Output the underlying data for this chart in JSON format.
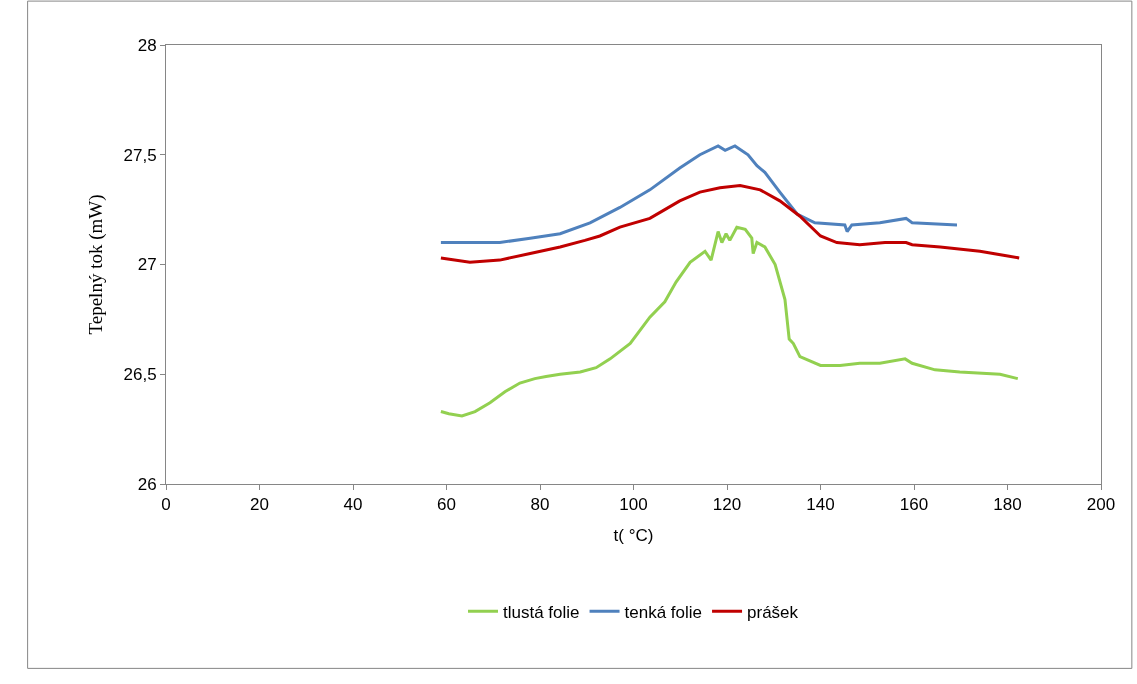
{
  "chart_data": {
    "type": "line",
    "xlabel": "t( °C)",
    "ylabel": "Tepelný tok (mW)",
    "xlim": [
      0,
      200
    ],
    "xticks": [
      0,
      20,
      40,
      60,
      80,
      100,
      120,
      140,
      160,
      180,
      200
    ],
    "ylim": [
      26,
      28
    ],
    "yticks": [
      26,
      {
        "value": 26.5,
        "label": "26,5"
      },
      27,
      {
        "value": 27.5,
        "label": "27,5"
      },
      28
    ],
    "grid": false,
    "legend": "bottom",
    "marker": "none",
    "line_style": "solid",
    "series": [
      {
        "name": "tlustá folie",
        "color": "#92d050",
        "x": [
          58.8,
          60.5,
          63.3,
          66.1,
          69.3,
          72.5,
          75.7,
          78.9,
          81.3,
          84.3,
          88.6,
          92.0,
          95.0,
          99.3,
          103.5,
          106.7,
          109.1,
          112.1,
          115.3,
          116.6,
          118.1,
          118.9,
          119.8,
          120.6,
          122.1,
          123.9,
          125.3,
          125.6,
          126.4,
          128.1,
          130.3,
          132.4,
          133.3,
          134.2,
          135.6,
          140.0,
          144.2,
          148.4,
          152.7,
          158.1,
          159.6,
          164.5,
          169.8,
          178.4,
          182.2
        ],
        "values": [
          26.33,
          26.32,
          26.31,
          26.33,
          26.37,
          26.42,
          26.46,
          26.48,
          26.49,
          26.5,
          26.51,
          26.53,
          26.57,
          26.64,
          26.76,
          26.83,
          26.92,
          27.01,
          27.06,
          27.02,
          27.15,
          27.1,
          27.14,
          27.11,
          27.17,
          27.16,
          27.12,
          27.05,
          27.1,
          27.08,
          27.0,
          26.84,
          26.66,
          26.64,
          26.58,
          26.54,
          26.54,
          26.55,
          26.55,
          26.57,
          26.55,
          26.52,
          26.51,
          26.5,
          26.48
        ]
      },
      {
        "name": "tenká folie",
        "color": "#4f81bd",
        "x": [
          58.8,
          65.0,
          71.4,
          77.9,
          84.3,
          90.7,
          97.1,
          103.5,
          109.9,
          114.2,
          118.1,
          119.6,
          121.7,
          124.5,
          126.4,
          128.1,
          131.3,
          135.0,
          138.8,
          145.2,
          145.7,
          146.7,
          152.7,
          158.3,
          159.6,
          169.2
        ],
        "values": [
          27.1,
          27.1,
          27.1,
          27.12,
          27.14,
          27.19,
          27.26,
          27.34,
          27.44,
          27.5,
          27.54,
          27.52,
          27.54,
          27.5,
          27.45,
          27.42,
          27.33,
          27.23,
          27.19,
          27.18,
          27.15,
          27.18,
          27.19,
          27.21,
          27.19,
          27.18
        ]
      },
      {
        "name": "prášek",
        "color": "#c00000",
        "x": [
          58.8,
          65.0,
          71.4,
          77.9,
          84.3,
          89.6,
          92.8,
          97.1,
          103.5,
          106.7,
          109.9,
          114.2,
          118.5,
          122.8,
          127.1,
          131.3,
          135.6,
          140.0,
          143.5,
          148.4,
          153.8,
          158.3,
          159.6,
          165.6,
          174.1,
          182.5
        ],
        "values": [
          27.03,
          27.01,
          27.02,
          27.05,
          27.08,
          27.11,
          27.13,
          27.17,
          27.21,
          27.25,
          27.29,
          27.33,
          27.35,
          27.36,
          27.34,
          27.29,
          27.22,
          27.13,
          27.1,
          27.09,
          27.1,
          27.1,
          27.09,
          27.08,
          27.06,
          27.03
        ]
      }
    ]
  }
}
